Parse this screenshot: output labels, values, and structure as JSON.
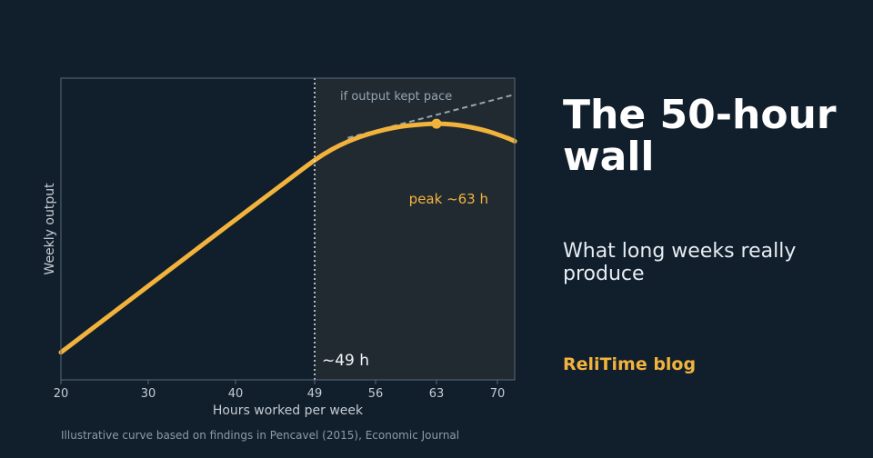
{
  "chart_data": {
    "type": "line",
    "title": "",
    "xlabel": "Hours worked per week",
    "ylabel": "Weekly output",
    "xlim": [
      20,
      72
    ],
    "ylim": [
      0,
      100
    ],
    "x_ticks": [
      20,
      30,
      40,
      49,
      56,
      63,
      70
    ],
    "series": [
      {
        "style": "solid",
        "color": "#f2b33d",
        "x": [
          20,
          25,
          30,
          35,
          40,
          45,
          49,
          51,
          53,
          55,
          57,
          59,
          61,
          63,
          65,
          67,
          69,
          71,
          72
        ],
        "y": [
          9.1,
          20.1,
          31.1,
          42.1,
          53.1,
          64.1,
          72.8,
          76.4,
          79.2,
          81.3,
          82.9,
          84.0,
          84.6,
          84.9,
          84.6,
          83.7,
          82.3,
          80.3,
          79.1
        ]
      },
      {
        "name": "if output kept pace",
        "style": "dashed",
        "color": "#94a5b4",
        "x": [
          52.8,
          72
        ],
        "y": [
          80.2,
          94.6
        ]
      }
    ],
    "reference_line": {
      "x": 49,
      "label": "~49 h"
    },
    "shaded_region": {
      "x_from": 49,
      "x_to": 72,
      "color": "#212a31"
    },
    "peak": {
      "x": 63,
      "y": 84.9,
      "label": "peak ~63 h"
    },
    "grid": false
  },
  "panel": {
    "headline": "The 50-hour wall",
    "subhead": "What long weeks really produce",
    "brand": "ReliTime blog"
  },
  "credit": "Illustrative curve based on findings in Pencavel (2015), Economic Journal"
}
